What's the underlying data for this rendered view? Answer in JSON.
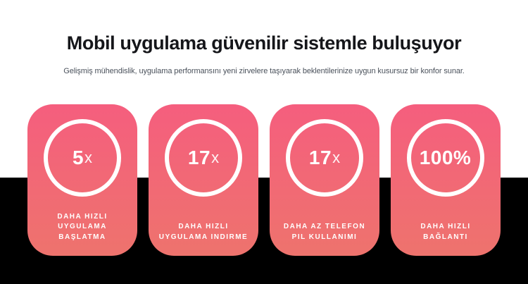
{
  "page": {
    "title": "Mobil uygulama güvenilir sistemle buluşuyor",
    "subtitle": "Gelişmiş mühendislik, uygulama performansını yeni zirvelere taşıyarak beklentilerinize uygun kusursuz bir konfor sunar."
  },
  "colors": {
    "card_gradient_top": "#f55e7e",
    "card_gradient_bottom": "#ee736d",
    "dark_section": "#000000",
    "title_text": "#15161a",
    "subtitle_text": "#4a515b",
    "card_text": "#ffffff"
  },
  "stats": [
    {
      "value": "5",
      "suffix": "x",
      "label_lines": [
        "DAHA HIZLI",
        "UYGULAMA",
        "BAŞLATMA"
      ]
    },
    {
      "value": "17",
      "suffix": "x",
      "label_lines": [
        "DAHA HIZLI",
        "UYGULAMA INDIRME"
      ]
    },
    {
      "value": "17",
      "suffix": "x",
      "label_lines": [
        "DAHA AZ TELEFON",
        "PIL KULLANIMI"
      ]
    },
    {
      "value": "100%",
      "suffix": "",
      "label_lines": [
        "DAHA HIZLI",
        "BAĞLANTI"
      ]
    }
  ]
}
